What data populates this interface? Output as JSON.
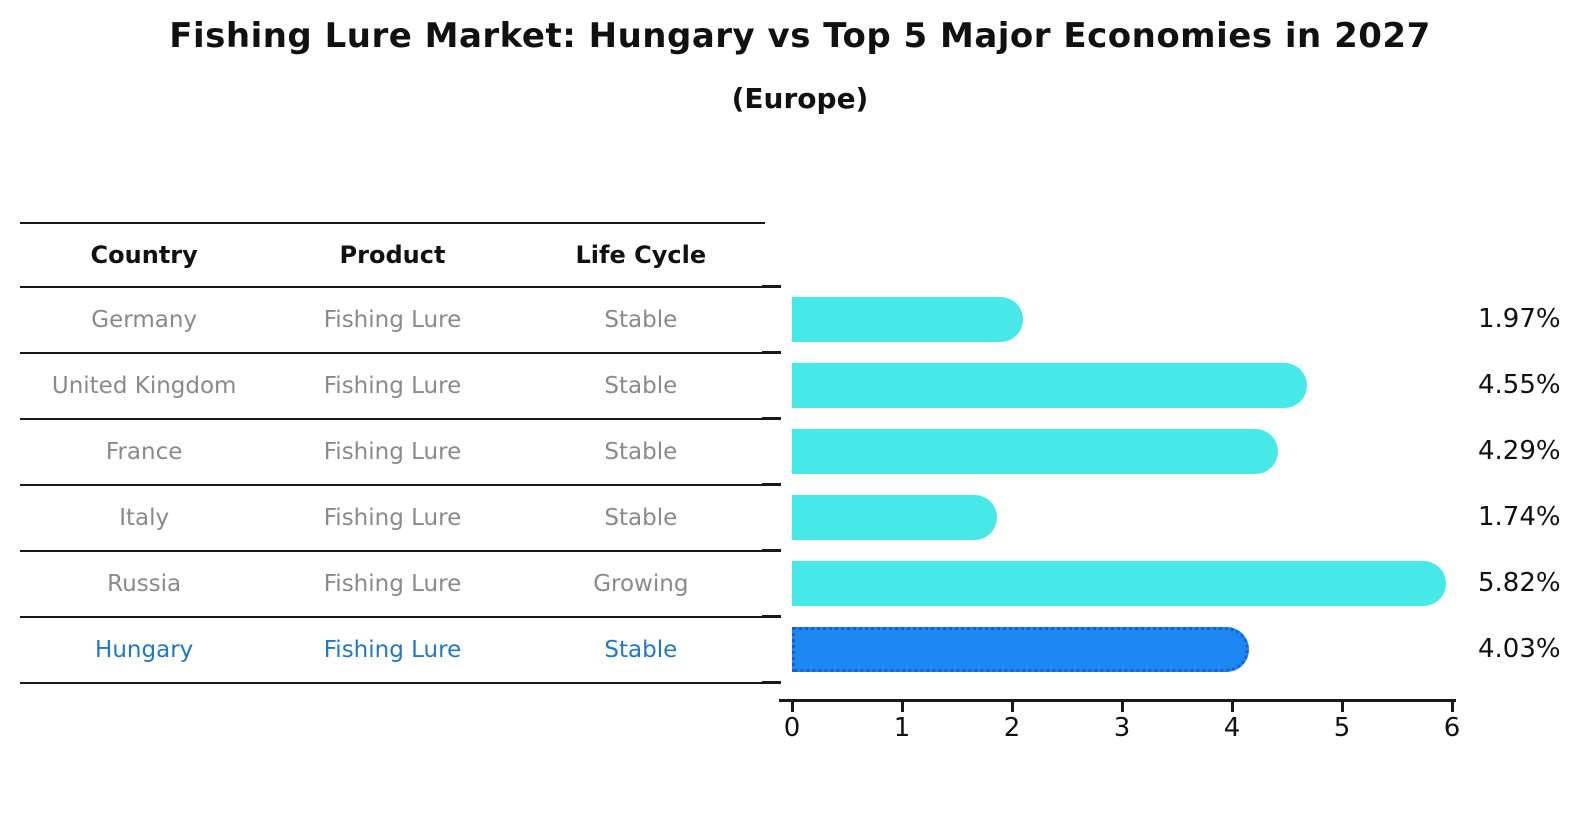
{
  "title": "Fishing Lure Market: Hungary vs Top 5 Major Economies in 2027",
  "subtitle": "(Europe)",
  "table": {
    "headers": [
      "Country",
      "Product",
      "Life Cycle"
    ],
    "rows": [
      {
        "country": "Germany",
        "product": "Fishing Lure",
        "life_cycle": "Stable",
        "highlighted": false
      },
      {
        "country": "United Kingdom",
        "product": "Fishing Lure",
        "life_cycle": "Stable",
        "highlighted": false
      },
      {
        "country": "France",
        "product": "Fishing Lure",
        "life_cycle": "Stable",
        "highlighted": false
      },
      {
        "country": "Italy",
        "product": "Fishing Lure",
        "life_cycle": "Stable",
        "highlighted": false
      },
      {
        "country": "Russia",
        "product": "Fishing Lure",
        "life_cycle": "Growing",
        "highlighted": false
      },
      {
        "country": "Hungary",
        "product": "Fishing Lure",
        "life_cycle": "Stable",
        "highlighted": true
      }
    ]
  },
  "chart_data": {
    "type": "bar",
    "orientation": "horizontal",
    "title": "Fishing Lure Market: Hungary vs Top 5 Major Economies in 2027",
    "subtitle": "(Europe)",
    "categories": [
      "Germany",
      "United Kingdom",
      "France",
      "Italy",
      "Russia",
      "Hungary"
    ],
    "values": [
      1.97,
      4.55,
      4.29,
      1.74,
      5.82,
      4.03
    ],
    "value_labels": [
      "1.97%",
      "4.55%",
      "4.29%",
      "1.74%",
      "5.82%",
      "4.03%"
    ],
    "unit": "percent CAGR",
    "xlim": [
      0,
      6
    ],
    "x_ticks": [
      0,
      1,
      2,
      3,
      4,
      5,
      6
    ],
    "grid": false,
    "legend": "none",
    "highlight_index": 5,
    "bar_color": "#47e8e8",
    "highlight_color": "#1e86f0",
    "highlight_border_color": "#1462d2"
  },
  "colors": {
    "background": "#ffffff",
    "text": "#111111",
    "table_text_muted": "#8a8a8a",
    "highlight_text": "#1f78c8",
    "line": "#1a1a1a"
  }
}
